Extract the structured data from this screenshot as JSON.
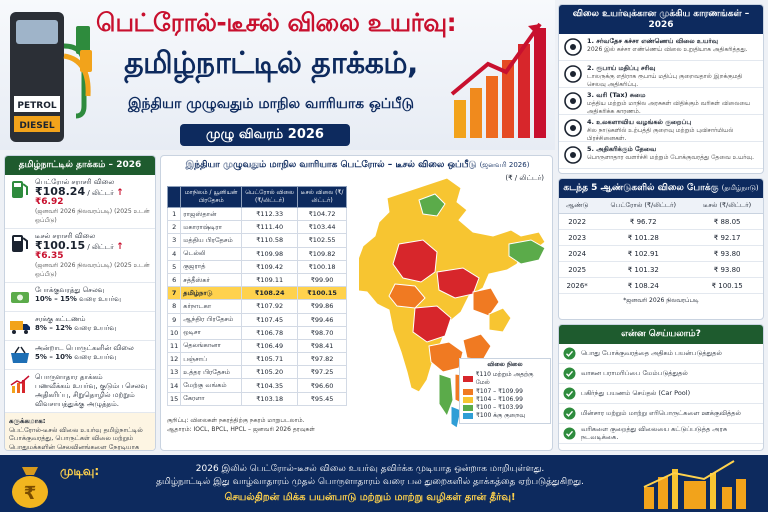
{
  "header": {
    "title_line1": "பெட்ரோல்-டீசல் விலை உயர்வு:",
    "title_line2": "தமிழ்நாட்டில் தாக்கம்,",
    "title_line3": "இந்தியா முழுவதும் மாநில வாரியாக ஒப்பீடு",
    "badge": "முழு விவரம் 2026",
    "pump_petrol": "PETROL",
    "pump_diesel": "DIESEL"
  },
  "left_panel": {
    "title": "தமிழ்நாட்டில் தாக்கம் – 2026",
    "petrol": {
      "label": "பெட்ரோல் சராசரி விலை",
      "price": "₹108.24",
      "unit": "/ லிட்டர்",
      "period": "(ஜனவரி 2026 நிலவரப்படி)",
      "rise": "₹6.92",
      "rise_note": "(2025 உடன் ஒப்பீடு)"
    },
    "diesel": {
      "label": "டீசல் சராசரி விலை",
      "price": "₹100.15",
      "unit": "/ லிட்டர்",
      "period": "(ஜனவரி 2026 நிலவரப்படி)",
      "rise": "₹6.35",
      "rise_note": "(2025 உடன் ஒப்பீடு)"
    },
    "transport": {
      "label": "போக்குவரத்து செலவு",
      "value": "10% – 15%",
      "suffix": "வரை உயர்வு"
    },
    "freight": {
      "label": "சரக்கு கட்டணம்",
      "value": "8% – 12%",
      "suffix": "வரை உயர்வு"
    },
    "essentials": {
      "label": "அன்றாட பொருட்களின் விலை",
      "value": "5% – 10%",
      "suffix": "வரை உயர்வு"
    },
    "economy": {
      "label": "பொருளாதார தாக்கம்",
      "text": "பணவீக்கம் உயர்வு, குடும்ப செலவு அதிகரிப்பு, சிறுதொழில் மற்றும் விவசாயத்துக்கு அழுத்தம்."
    },
    "note_title": "கருக்கமாக:",
    "note_text": "பெட்ரோல்-டீசல் விலை உயர்வு தமிழ்நாட்டில் போக்குவரத்து, பொருட்கள் விலை மற்றும் பொதுமக்களின் செலவினங்களை நேரடியாக பாதிக்கிறது."
  },
  "center": {
    "title": "இந்தியா முழுவதும் மாநில வாரியாக பெட்ரோல் – டீசல் விலை ஒப்பீடு",
    "title_sub": "(ஜனவரி 2026)",
    "unit": "(₹ / லிட்டர்)",
    "col_state": "மாநிலம் / யூனியன் பிரதேசம்",
    "col_petrol": "பெட்ரோல் விலை (₹/லிட்டர்)",
    "col_diesel": "டீசல் விலை (₹/லிட்டர்)",
    "rows": [
      {
        "n": "1",
        "state": "ராஜஸ்தான்",
        "petrol": "₹112.33",
        "diesel": "₹104.72"
      },
      {
        "n": "2",
        "state": "மகாராஷ்டிரா",
        "petrol": "₹111.40",
        "diesel": "₹103.44"
      },
      {
        "n": "3",
        "state": "மத்திய பிரதேசம்",
        "petrol": "₹110.58",
        "diesel": "₹102.55"
      },
      {
        "n": "4",
        "state": "டெல்லி",
        "petrol": "₹109.98",
        "diesel": "₹109.82"
      },
      {
        "n": "5",
        "state": "குஜராத்",
        "petrol": "₹109.42",
        "diesel": "₹100.18"
      },
      {
        "n": "6",
        "state": "சத்தீஸ்கர்",
        "petrol": "₹109.11",
        "diesel": "₹99.90"
      },
      {
        "n": "7",
        "state": "தமிழ்நாடு",
        "petrol": "₹108.24",
        "diesel": "₹100.15"
      },
      {
        "n": "8",
        "state": "கர்நாடகா",
        "petrol": "₹107.92",
        "diesel": "₹99.86"
      },
      {
        "n": "9",
        "state": "ஆந்திர பிரதேசம்",
        "petrol": "₹107.45",
        "diesel": "₹99.46"
      },
      {
        "n": "10",
        "state": "ஒடிசா",
        "petrol": "₹106.78",
        "diesel": "₹98.70"
      },
      {
        "n": "11",
        "state": "தெலங்கானா",
        "petrol": "₹106.49",
        "diesel": "₹98.41"
      },
      {
        "n": "12",
        "state": "பஞ்சாப்",
        "petrol": "₹105.71",
        "diesel": "₹97.82"
      },
      {
        "n": "13",
        "state": "உத்தர பிரதேசம்",
        "petrol": "₹105.20",
        "diesel": "₹97.25"
      },
      {
        "n": "14",
        "state": "மேற்கு வங்கம்",
        "petrol": "₹104.35",
        "diesel": "₹96.60"
      },
      {
        "n": "15",
        "state": "கேரளா",
        "petrol": "₹103.18",
        "diesel": "₹95.45"
      }
    ],
    "note1": "குறிப்பு: விலைகள் நகரத்திற்கு நகரம் மாறுபடலாம்.",
    "note2": "ஆதாரம்: IOCL, BPCL, HPCL – ஜனவரி 2026 தரவுகள்",
    "legend_title": "விலை நிலை",
    "legend": [
      {
        "color": "#d7262b",
        "label": "₹110 மற்றும் அதற்கு மேல்"
      },
      {
        "color": "#f07a22",
        "label": "₹107 – ₹109.99"
      },
      {
        "color": "#f7c531",
        "label": "₹104 – ₹106.99"
      },
      {
        "color": "#5bab4a",
        "label": "₹100 – ₹103.99"
      },
      {
        "color": "#2f9ed6",
        "label": "₹100 க்கு குறைவு"
      }
    ]
  },
  "reasons": {
    "title": "விலை உயர்வுக்கான முக்கிய காரணங்கள் – 2026",
    "items": [
      {
        "n": "1.",
        "title": "சர்வதேச கச்சா எண்ணெய் விலை உயர்வு",
        "text": "2026 இல் கச்சா எண்ணெய் விலை உறுதியாக அதிகரித்தது."
      },
      {
        "n": "2.",
        "title": "ரூபாய் மதிப்பு சரிவு",
        "text": "டாலருக்கு எதிராக ரூபாய் மதிப்பு குறைவதால் இறக்குமதி செலவு அதிகரிப்பு."
      },
      {
        "n": "3.",
        "title": "வரி (Tax) சுமை",
        "text": "மத்திய மற்றும் மாநில அரசுகள் விதிக்கும் வரிகள் விலையை அதிகரிக்க காரணம்."
      },
      {
        "n": "4.",
        "title": "உலகளாவிய வழங்கல் குறைப்பு",
        "text": "சில நாடுகளில் உற்பத்தி குறைவு மற்றும் புவிசார்மியல் பிரச்சினைகள்."
      },
      {
        "n": "5.",
        "title": "அதிகரிக்கும் தேவை",
        "text": "பொருளாதார வளர்ச்சி மற்றும் போக்குவரத்து தேவை உயர்வு."
      }
    ]
  },
  "trend": {
    "title": "கடந்த 5 ஆண்டுகளில் விலை போக்கு",
    "title_sub": "(தமிழ்நாடு)",
    "col_year": "ஆண்டு",
    "col_petrol": "பெட்ரோல் (₹/லிட்டர்)",
    "col_diesel": "டீசல் (₹/லிட்டர்)",
    "rows": [
      {
        "year": "2022",
        "petrol": "₹ 96.72",
        "diesel": "₹ 88.05"
      },
      {
        "year": "2023",
        "petrol": "₹ 101.28",
        "diesel": "₹ 92.17"
      },
      {
        "year": "2024",
        "petrol": "₹ 102.91",
        "diesel": "₹ 93.80"
      },
      {
        "year": "2025",
        "petrol": "₹ 101.32",
        "diesel": "₹ 93.80"
      },
      {
        "year": "2026*",
        "petrol": "₹ 108.24",
        "diesel": "₹ 100.15"
      }
    ],
    "note": "*ஜனவரி 2026 நிலவரப்படி"
  },
  "todo": {
    "title": "என்ன செய்யலாம்?",
    "items": [
      "பொது போக்குவரத்தை அதிகம் பயன்படுத்துதல்",
      "வாகன பராமரிப்பை மேம்படுத்துதல்",
      "பகிர்ந்து பயணம் செய்தல் (Car Pool)",
      "மின்சார மற்றும் மாற்று எரிபொருட்களை ஊக்குவித்தல்",
      "வரிகளை குறைத்து விலையை கட்டுப்படுத்த அரசு நடவடிக்கை."
    ]
  },
  "footer": {
    "label": "முடிவு:",
    "line1": "2026 இலில் பெட்ரோல்-டீசல் விலை உயர்வு தவிர்க்க முடியாத ஒன்றாக மாறியுள்ளது.",
    "line2": "தமிழ்நாட்டில் இது வாழ்வாதாரம் முதல் பொருளாதாரம் வரை பல துறைகளில் தாக்கத்தை ஏற்படுத்துகிறது.",
    "line3": "செயல்திறன் மிக்க பயன்பாடு மற்றும் மாற்று வழிகள் தான் தீர்வு!"
  }
}
